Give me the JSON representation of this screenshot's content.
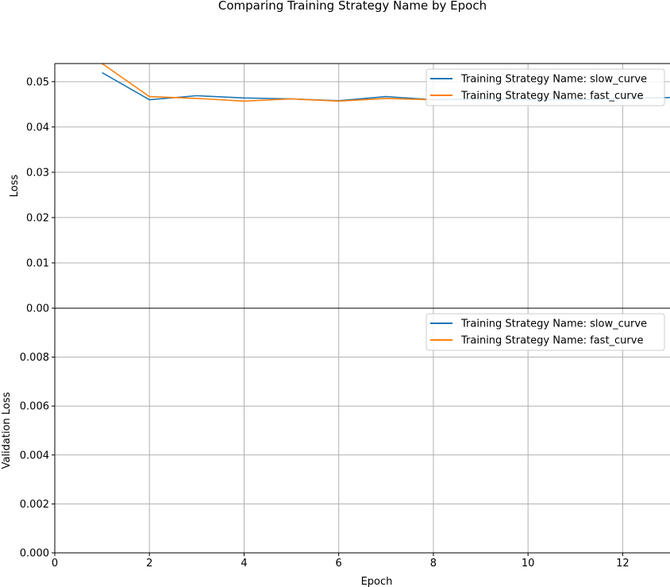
{
  "figure": {
    "title": "Comparing Training Strategy Name by Epoch"
  },
  "colors": {
    "slow_curve": "#1f77b4",
    "fast_curve": "#ff7f0e",
    "grid": "#b0b0b0",
    "axis": "#000000"
  },
  "chart_data": [
    {
      "type": "line",
      "title": "",
      "xlabel": "",
      "ylabel": "Loss",
      "xlim": [
        0,
        13
      ],
      "ylim": [
        0,
        0.054
      ],
      "yticks": [
        "0.00",
        "0.01",
        "0.02",
        "0.03",
        "0.04",
        "0.05"
      ],
      "grid": true,
      "legend_position": "upper right",
      "series": [
        {
          "name": "Training Strategy Name: slow_curve",
          "color": "#1f77b4",
          "x": [
            1,
            2,
            3,
            4,
            5,
            6,
            7,
            8,
            9,
            10,
            11,
            12,
            13
          ],
          "y": [
            0.052,
            0.046,
            0.0469,
            0.0464,
            0.0462,
            0.0458,
            0.0467,
            0.046,
            0.0462,
            0.0461,
            0.046,
            0.0463,
            0.0465
          ]
        },
        {
          "name": "Training Strategy Name: fast_curve",
          "color": "#ff7f0e",
          "x": [
            1,
            2,
            3,
            4,
            5,
            6,
            7,
            8
          ],
          "y": [
            0.054,
            0.0467,
            0.0463,
            0.0457,
            0.0462,
            0.0457,
            0.0463,
            0.046
          ]
        }
      ]
    },
    {
      "type": "line",
      "title": "",
      "xlabel": "Epoch",
      "ylabel": "Validation Loss",
      "xlim": [
        0,
        13
      ],
      "ylim": [
        0,
        0.01
      ],
      "xticks": [
        "0",
        "2",
        "4",
        "6",
        "8",
        "10",
        "12"
      ],
      "yticks": [
        "0.000",
        "0.002",
        "0.004",
        "0.006",
        "0.008"
      ],
      "grid": true,
      "legend_position": "upper right",
      "series": [
        {
          "name": "Training Strategy Name: slow_curve",
          "color": "#1f77b4",
          "x": [],
          "y": []
        },
        {
          "name": "Training Strategy Name: fast_curve",
          "color": "#ff7f0e",
          "x": [],
          "y": []
        }
      ]
    }
  ]
}
